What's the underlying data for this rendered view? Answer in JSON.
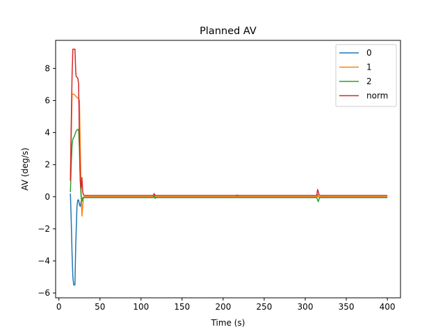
{
  "chart_data": {
    "type": "line",
    "title": "Planned AV",
    "xlabel": "Time (s)",
    "ylabel": "AV (deg/s)",
    "xlim": [
      -4,
      416
    ],
    "ylim": [
      -6.3,
      9.75
    ],
    "xticks": [
      0,
      50,
      100,
      150,
      200,
      250,
      300,
      350,
      400
    ],
    "yticks": [
      -6,
      -4,
      -2,
      0,
      2,
      4,
      6,
      8
    ],
    "grid": false,
    "legend_position": "top-right",
    "series": [
      {
        "name": "0",
        "color": "#1f77b4",
        "points": [
          [
            14,
            0.2
          ],
          [
            15,
            -1.5
          ],
          [
            16,
            -3.5
          ],
          [
            17,
            -5.0
          ],
          [
            18,
            -5.5
          ],
          [
            19.5,
            -5.5
          ],
          [
            20.5,
            -3.0
          ],
          [
            22,
            -0.6
          ],
          [
            23,
            -0.2
          ],
          [
            24,
            -0.2
          ],
          [
            25,
            -0.5
          ],
          [
            26,
            -0.6
          ],
          [
            27,
            -0.3
          ],
          [
            28,
            -0.1
          ],
          [
            30,
            -0.05
          ],
          [
            32,
            -0.05
          ],
          [
            115,
            -0.05
          ],
          [
            116,
            0.05
          ],
          [
            117,
            -0.1
          ],
          [
            118,
            -0.05
          ],
          [
            215,
            -0.05
          ],
          [
            217,
            0.0
          ],
          [
            219,
            -0.05
          ],
          [
            314,
            -0.05
          ],
          [
            315,
            0.15
          ],
          [
            316,
            0.0
          ],
          [
            318,
            -0.05
          ],
          [
            400,
            -0.05
          ]
        ]
      },
      {
        "name": "1",
        "color": "#ff7f0e",
        "points": [
          [
            14,
            1.0
          ],
          [
            16,
            6.4
          ],
          [
            18,
            6.4
          ],
          [
            20,
            6.3
          ],
          [
            22,
            6.2
          ],
          [
            24,
            6.1
          ],
          [
            25,
            6.0
          ],
          [
            26,
            3.0
          ],
          [
            27,
            0.5
          ],
          [
            28,
            -1.2
          ],
          [
            29,
            -0.6
          ],
          [
            30,
            0.0
          ],
          [
            32,
            0.0
          ],
          [
            115,
            0.0
          ],
          [
            116,
            0.15
          ],
          [
            117,
            0.0
          ],
          [
            215,
            0.0
          ],
          [
            217,
            0.03
          ],
          [
            219,
            0.0
          ],
          [
            314,
            0.0
          ],
          [
            315,
            0.1
          ],
          [
            316,
            0.0
          ],
          [
            400,
            0.0
          ]
        ]
      },
      {
        "name": "2",
        "color": "#2ca02c",
        "points": [
          [
            14,
            0.3
          ],
          [
            15,
            2.0
          ],
          [
            16,
            3.2
          ],
          [
            17,
            3.6
          ],
          [
            19,
            3.8
          ],
          [
            21,
            4.1
          ],
          [
            23,
            4.2
          ],
          [
            24,
            4.2
          ],
          [
            25,
            3.0
          ],
          [
            26,
            1.0
          ],
          [
            27,
            0.0
          ],
          [
            28,
            -0.3
          ],
          [
            29,
            -0.1
          ],
          [
            30,
            -0.05
          ],
          [
            32,
            -0.05
          ],
          [
            115,
            -0.05
          ],
          [
            116,
            0.05
          ],
          [
            117,
            -0.1
          ],
          [
            118,
            -0.05
          ],
          [
            215,
            -0.05
          ],
          [
            314,
            -0.05
          ],
          [
            315,
            -0.2
          ],
          [
            316,
            -0.3
          ],
          [
            317,
            -0.1
          ],
          [
            318,
            -0.05
          ],
          [
            400,
            -0.05
          ]
        ]
      },
      {
        "name": "norm",
        "color": "#d62728",
        "points": [
          [
            14,
            1.0
          ],
          [
            15,
            4.5
          ],
          [
            16,
            7.5
          ],
          [
            17,
            9.2
          ],
          [
            19.5,
            9.2
          ],
          [
            20.5,
            7.8
          ],
          [
            21,
            7.5
          ],
          [
            23,
            7.4
          ],
          [
            24,
            7.0
          ],
          [
            25,
            3.5
          ],
          [
            26,
            1.0
          ],
          [
            27,
            0.5
          ],
          [
            28,
            1.2
          ],
          [
            29,
            0.3
          ],
          [
            30,
            0.1
          ],
          [
            32,
            0.08
          ],
          [
            115,
            0.08
          ],
          [
            116,
            0.2
          ],
          [
            117,
            0.1
          ],
          [
            118,
            0.08
          ],
          [
            215,
            0.08
          ],
          [
            217,
            0.1
          ],
          [
            219,
            0.08
          ],
          [
            314,
            0.08
          ],
          [
            315,
            0.45
          ],
          [
            316,
            0.3
          ],
          [
            317,
            0.1
          ],
          [
            318,
            0.08
          ],
          [
            400,
            0.08
          ]
        ]
      }
    ]
  }
}
